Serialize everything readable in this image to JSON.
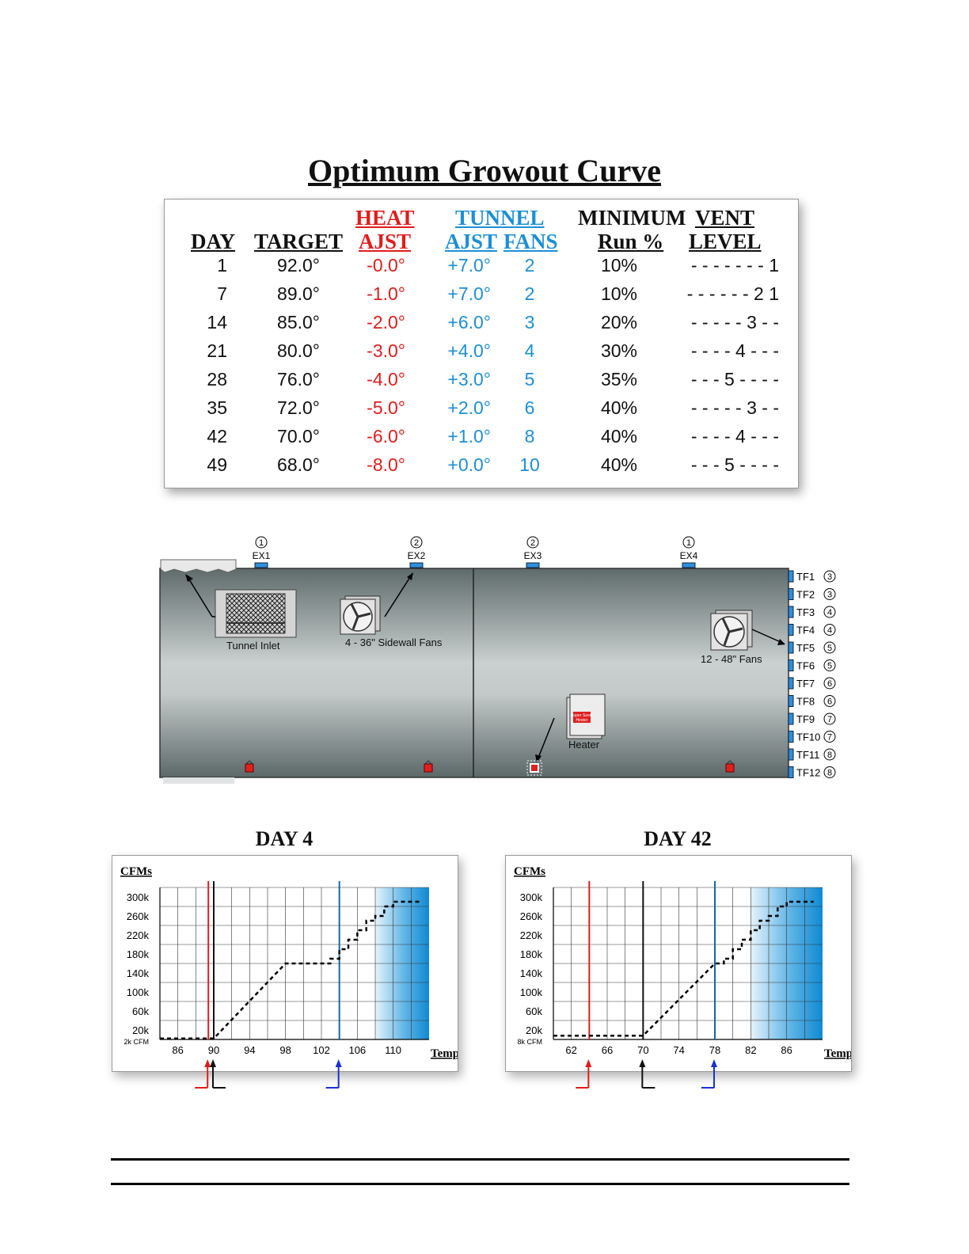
{
  "page_title": "Optimum Growout Curve",
  "table": {
    "headers": {
      "day": "DAY",
      "target": "TARGET",
      "heat_top": "HEAT",
      "heat_bottom": "AJST",
      "tunnel_top": "TUNNEL",
      "tunnel_ajst": "AJST",
      "tunnel_fans": "FANS",
      "minimum_top": "MINIMUM",
      "minimum_bottom": "Run %",
      "vent_top": "VENT",
      "vent_bottom": "LEVEL"
    },
    "rows": [
      {
        "day": "1",
        "target": "92.0°",
        "heat": "-0.0°",
        "tunnel": "+7.0°",
        "fans": "2",
        "run": "10%",
        "vent": "- - - - - - - 1"
      },
      {
        "day": "7",
        "target": "89.0°",
        "heat": "-1.0°",
        "tunnel": "+7.0°",
        "fans": "2",
        "run": "10%",
        "vent": "- - - - - - 2 1"
      },
      {
        "day": "14",
        "target": "85.0°",
        "heat": "-2.0°",
        "tunnel": "+6.0°",
        "fans": "3",
        "run": "20%",
        "vent": "- - - - - 3 - -"
      },
      {
        "day": "21",
        "target": "80.0°",
        "heat": "-3.0°",
        "tunnel": "+4.0°",
        "fans": "4",
        "run": "30%",
        "vent": "- - - - 4 - - -"
      },
      {
        "day": "28",
        "target": "76.0°",
        "heat": "-4.0°",
        "tunnel": "+3.0°",
        "fans": "5",
        "run": "35%",
        "vent": "- - - 5 - - - -"
      },
      {
        "day": "35",
        "target": "72.0°",
        "heat": "-5.0°",
        "tunnel": "+2.0°",
        "fans": "6",
        "run": "40%",
        "vent": "- - - - - 3 - -"
      },
      {
        "day": "42",
        "target": "70.0°",
        "heat": "-6.0°",
        "tunnel": "+1.0°",
        "fans": "8",
        "run": "40%",
        "vent": "- - - - 4 - - -"
      },
      {
        "day": "49",
        "target": "68.0°",
        "heat": "-8.0°",
        "tunnel": "+0.0°",
        "fans": "10",
        "run": "40%",
        "vent": "- - - 5 - - - -"
      }
    ]
  },
  "barn": {
    "exhaust_fans": [
      {
        "label": "EX1",
        "group": "1"
      },
      {
        "label": "EX2",
        "group": "2"
      },
      {
        "label": "EX3",
        "group": "2"
      },
      {
        "label": "EX4",
        "group": "1"
      }
    ],
    "tunnel_fans": [
      {
        "label": "TF1",
        "group": "3"
      },
      {
        "label": "TF2",
        "group": "3"
      },
      {
        "label": "TF3",
        "group": "4"
      },
      {
        "label": "TF4",
        "group": "4"
      },
      {
        "label": "TF5",
        "group": "5"
      },
      {
        "label": "TF6",
        "group": "5"
      },
      {
        "label": "TF7",
        "group": "6"
      },
      {
        "label": "TF8",
        "group": "6"
      },
      {
        "label": "TF9",
        "group": "7"
      },
      {
        "label": "TF10",
        "group": "7"
      },
      {
        "label": "TF11",
        "group": "8"
      },
      {
        "label": "TF12",
        "group": "8"
      }
    ],
    "labels": {
      "tunnel_inlet": "Tunnel Inlet",
      "sidewall_fans": "4 - 36\" Sidewall Fans",
      "tunnel_fans": "12 - 48\" Fans",
      "heater": "Heater",
      "heater_brand_top": "Super Saver",
      "heater_brand_bottom": "Heater"
    }
  },
  "chart_data": [
    {
      "type": "line",
      "title": "DAY 4",
      "ylabel": "CFMs",
      "xlabel": "Temp",
      "y_tick_labels": [
        "300k",
        "260k",
        "220k",
        "180k",
        "140k",
        "100k",
        "60k",
        "20k"
      ],
      "y_min_label": "2k CFM",
      "x_tick_labels": [
        "86",
        "90",
        "94",
        "98",
        "102",
        "106",
        "110"
      ],
      "xlim": [
        84,
        114
      ],
      "ylim": [
        0,
        320000
      ],
      "heat_line_x": 89.4,
      "target_line_x": 90,
      "tunnel_line_x": 104,
      "tunnel_zone_start": 108,
      "series": [
        {
          "x": [
            84,
            90,
            98,
            103,
            103,
            104,
            104,
            105,
            105,
            106,
            106,
            107,
            107,
            108,
            108,
            109,
            109,
            110,
            110,
            113
          ],
          "values": [
            2000,
            2000,
            160000,
            160000,
            170000,
            170000,
            190000,
            190000,
            210000,
            210000,
            230000,
            230000,
            250000,
            250000,
            260000,
            260000,
            280000,
            280000,
            290000,
            290000
          ]
        }
      ]
    },
    {
      "type": "line",
      "title": "DAY 42",
      "ylabel": "CFMs",
      "xlabel": "Temp",
      "y_tick_labels": [
        "300k",
        "260k",
        "220k",
        "180k",
        "140k",
        "100k",
        "60k",
        "20k"
      ],
      "y_min_label": "8k CFM",
      "x_tick_labels": [
        "62",
        "66",
        "70",
        "74",
        "78",
        "82",
        "86"
      ],
      "xlim": [
        60,
        90
      ],
      "ylim": [
        0,
        320000
      ],
      "heat_line_x": 64,
      "target_line_x": 70,
      "tunnel_line_x": 78,
      "tunnel_zone_start": 82,
      "series": [
        {
          "x": [
            60,
            70,
            78,
            79,
            79,
            80,
            80,
            81,
            81,
            82,
            82,
            83,
            83,
            84,
            84,
            85,
            85,
            86,
            86,
            89
          ],
          "values": [
            8000,
            8000,
            160000,
            160000,
            170000,
            170000,
            190000,
            190000,
            210000,
            210000,
            230000,
            230000,
            250000,
            250000,
            260000,
            260000,
            280000,
            280000,
            290000,
            290000
          ]
        }
      ]
    }
  ],
  "colors": {
    "heat": "#e31b1b",
    "tunnel": "#1c8fd6",
    "barn_dark": "#5f6b6b",
    "barn_light": "#c9d0cf"
  }
}
